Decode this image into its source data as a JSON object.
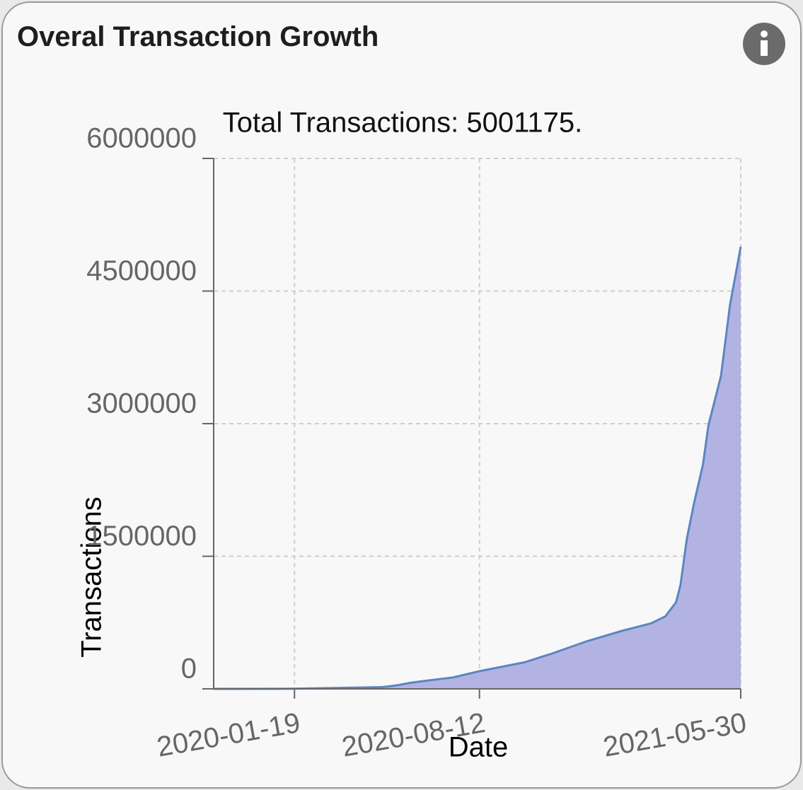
{
  "header": {
    "title": "Overal Transaction Growth"
  },
  "chart_data": {
    "type": "area",
    "title": "Total Transactions: 5001175.",
    "x_label": "Date",
    "y_label": "Transactions",
    "x": [
      "2019-10-21",
      "2020-01-19",
      "2020-04-26",
      "2020-05-12",
      "2020-05-28",
      "2020-06-12",
      "2020-07-14",
      "2020-08-12",
      "2020-10-01",
      "2020-11-01",
      "2020-12-10",
      "2021-01-19",
      "2021-02-19",
      "2021-03-07",
      "2021-03-19",
      "2021-03-24",
      "2021-03-31",
      "2021-04-08",
      "2021-04-18",
      "2021-04-24",
      "2021-05-08",
      "2021-05-18",
      "2021-05-30"
    ],
    "series": [
      {
        "name": "Transactions",
        "color": "#5b86c0",
        "fill": "#b3b3e3",
        "values": [
          0,
          2000,
          20000,
          40000,
          70000,
          90000,
          130000,
          200000,
          300000,
          400000,
          540000,
          660000,
          740000,
          820000,
          980000,
          1180000,
          1700000,
          2100000,
          2540000,
          2980000,
          3540000,
          4340000,
          5001175
        ]
      }
    ],
    "xlim": [
      "2019-10-21",
      "2021-05-30"
    ],
    "xticks": [
      "2020-01-19",
      "2020-08-12",
      "2021-05-30"
    ],
    "ylim": [
      0,
      6000000
    ],
    "yticks": [
      0,
      1500000,
      3000000,
      4500000,
      6000000
    ],
    "grid": true
  }
}
